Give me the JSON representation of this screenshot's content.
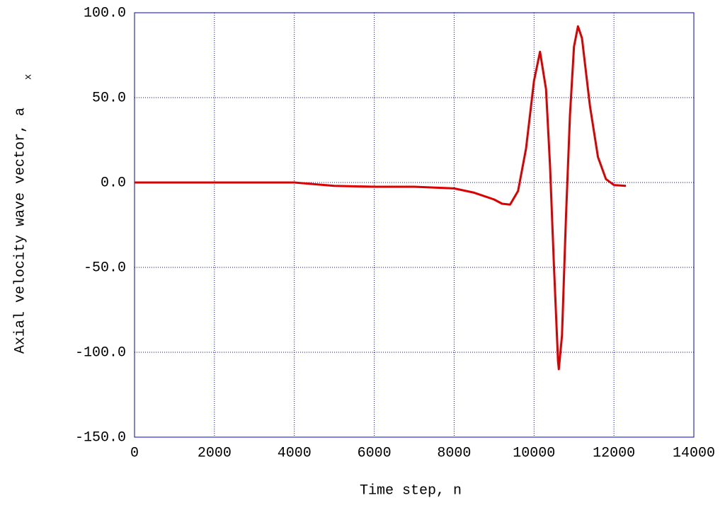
{
  "chart_data": {
    "type": "line",
    "xlabel": "Time step, n",
    "ylabel": "Axial velocity wave vector, a",
    "ylabel_subscript": "x",
    "x": [
      0,
      2000,
      4000,
      4500,
      5000,
      6000,
      7000,
      8000,
      8500,
      9000,
      9200,
      9400,
      9600,
      9800,
      10000,
      10150,
      10300,
      10400,
      10500,
      10600,
      10620,
      10700,
      10800,
      10900,
      11000,
      11100,
      11200,
      11400,
      11600,
      11800,
      12000,
      12300
    ],
    "series": [
      {
        "name": "a_x",
        "color": "#dd0000",
        "values": [
          0,
          0,
          0,
          -1,
          -2,
          -2.5,
          -2.5,
          -3.5,
          -6,
          -10,
          -12.5,
          -13,
          -5,
          20,
          60,
          77,
          55,
          10,
          -50,
          -105,
          -110,
          -90,
          -20,
          40,
          80,
          92,
          85,
          45,
          15,
          2,
          -1.5,
          -2
        ]
      }
    ],
    "xlim": [
      0,
      14000
    ],
    "xticks": [
      0,
      2000,
      4000,
      6000,
      8000,
      10000,
      12000,
      14000
    ],
    "ylim": [
      -150,
      100
    ],
    "yticks": [
      {
        "value": -150,
        "label": "-150.0"
      },
      {
        "value": -100,
        "label": "-100.0"
      },
      {
        "value": -50,
        "label": "-50.0"
      },
      {
        "value": 0,
        "label": "0.0"
      },
      {
        "value": 50,
        "label": "50.0"
      },
      {
        "value": 100,
        "label": "100.0"
      }
    ],
    "grid": true,
    "grid_color": "#0000cc"
  }
}
